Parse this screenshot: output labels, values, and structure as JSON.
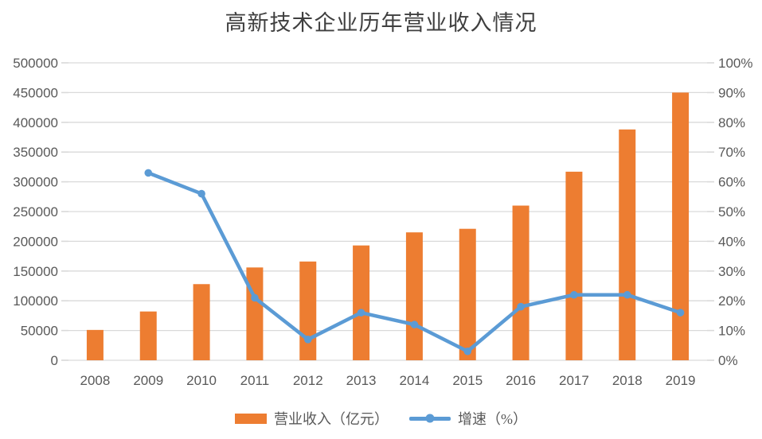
{
  "chart_data": {
    "type": "combo-bar-line",
    "title": "高新技术企业历年营业收入情况",
    "categories": [
      "2008",
      "2009",
      "2010",
      "2011",
      "2012",
      "2013",
      "2014",
      "2015",
      "2016",
      "2017",
      "2018",
      "2019"
    ],
    "series": [
      {
        "name": "营业收入（亿元）",
        "type": "bar",
        "axis": "left",
        "color": "#ED7D31",
        "values": [
          51000,
          82000,
          128000,
          156000,
          166000,
          193000,
          215000,
          221000,
          260000,
          317000,
          388000,
          450000
        ]
      },
      {
        "name": "增速（%）",
        "type": "line",
        "axis": "right",
        "color": "#5B9BD5",
        "values": [
          null,
          63,
          56,
          21,
          7,
          16,
          12,
          3,
          18,
          22,
          22,
          16
        ]
      }
    ],
    "left_axis": {
      "min": 0,
      "max": 500000,
      "step": 50000,
      "tick_labels": [
        "0",
        "50000",
        "100000",
        "150000",
        "200000",
        "250000",
        "300000",
        "350000",
        "400000",
        "450000",
        "500000"
      ]
    },
    "right_axis": {
      "min": 0,
      "max": 100,
      "step": 10,
      "tick_labels": [
        "0%",
        "10%",
        "20%",
        "30%",
        "40%",
        "50%",
        "60%",
        "70%",
        "80%",
        "90%",
        "100%"
      ]
    },
    "grid": true,
    "legend_position": "bottom",
    "colors": {
      "grid": "#D9D9D9",
      "axis_text": "#595959",
      "title_text": "#3F3F3F",
      "background": "#FFFFFF"
    }
  }
}
